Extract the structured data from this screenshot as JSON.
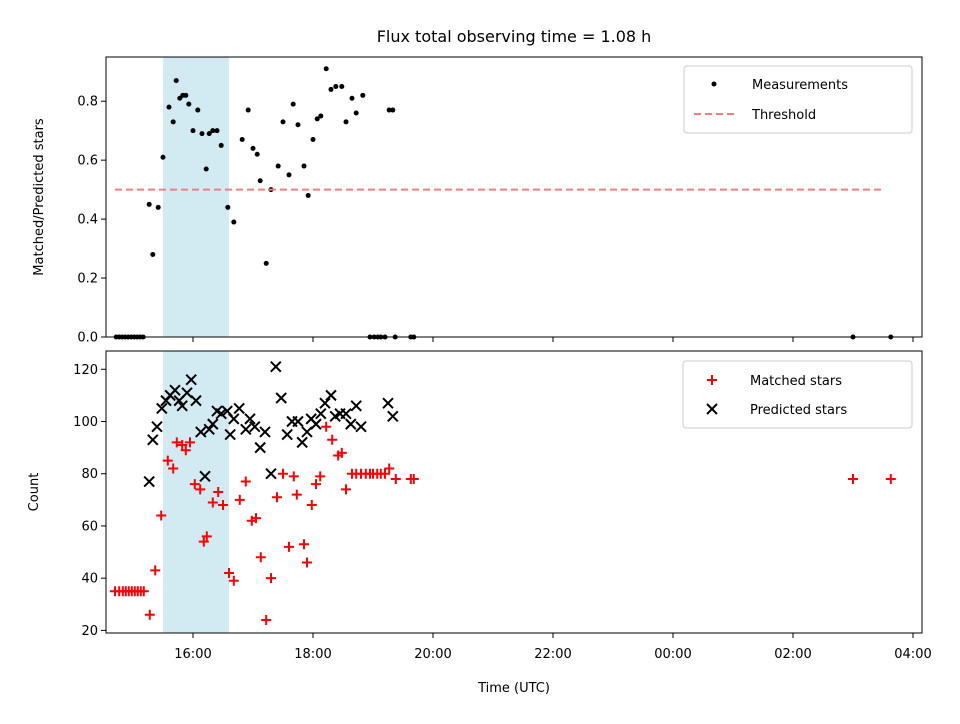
{
  "chart_data": [
    {
      "type": "scatter",
      "title": "Flux total observing time = 1.08 h",
      "xlabel": "",
      "ylabel": "Matched/Predicted stars",
      "xlim": [
        14.55,
        28.15
      ],
      "ylim": [
        0,
        0.95
      ],
      "yticks": [
        0.0,
        0.2,
        0.4,
        0.6,
        0.8
      ],
      "ytick_labels": [
        "0.0",
        "0.2",
        "0.4",
        "0.6",
        "0.8"
      ],
      "grid": false,
      "legend_position": "top-right",
      "shaded_span": {
        "x": [
          15.5,
          16.6
        ],
        "color": "#add8e6"
      },
      "series": [
        {
          "name": "Measurements",
          "marker": "dot",
          "color": "#000000",
          "points": [
            [
              14.72,
              0.0
            ],
            [
              14.77,
              0.0
            ],
            [
              14.82,
              0.0
            ],
            [
              14.87,
              0.0
            ],
            [
              14.92,
              0.0
            ],
            [
              14.97,
              0.0
            ],
            [
              15.02,
              0.0
            ],
            [
              15.07,
              0.0
            ],
            [
              15.12,
              0.0
            ],
            [
              15.17,
              0.0
            ],
            [
              15.27,
              0.45
            ],
            [
              15.33,
              0.28
            ],
            [
              15.42,
              0.44
            ],
            [
              15.5,
              0.61
            ],
            [
              15.6,
              0.78
            ],
            [
              15.67,
              0.73
            ],
            [
              15.72,
              0.87
            ],
            [
              15.78,
              0.81
            ],
            [
              15.83,
              0.82
            ],
            [
              15.88,
              0.82
            ],
            [
              15.93,
              0.79
            ],
            [
              16.0,
              0.7
            ],
            [
              16.08,
              0.77
            ],
            [
              16.15,
              0.69
            ],
            [
              16.22,
              0.57
            ],
            [
              16.27,
              0.69
            ],
            [
              16.33,
              0.7
            ],
            [
              16.4,
              0.7
            ],
            [
              16.47,
              0.65
            ],
            [
              16.58,
              0.44
            ],
            [
              16.68,
              0.39
            ],
            [
              16.82,
              0.67
            ],
            [
              16.92,
              0.77
            ],
            [
              17.0,
              0.64
            ],
            [
              17.07,
              0.62
            ],
            [
              17.12,
              0.53
            ],
            [
              17.22,
              0.25
            ],
            [
              17.3,
              0.5
            ],
            [
              17.42,
              0.58
            ],
            [
              17.5,
              0.73
            ],
            [
              17.6,
              0.55
            ],
            [
              17.67,
              0.79
            ],
            [
              17.75,
              0.72
            ],
            [
              17.85,
              0.58
            ],
            [
              17.92,
              0.48
            ],
            [
              18.0,
              0.67
            ],
            [
              18.07,
              0.74
            ],
            [
              18.13,
              0.75
            ],
            [
              18.22,
              0.91
            ],
            [
              18.3,
              0.84
            ],
            [
              18.38,
              0.85
            ],
            [
              18.48,
              0.85
            ],
            [
              18.55,
              0.73
            ],
            [
              18.65,
              0.81
            ],
            [
              18.72,
              0.76
            ],
            [
              18.83,
              0.82
            ],
            [
              18.95,
              0.0
            ],
            [
              19.02,
              0.0
            ],
            [
              19.08,
              0.0
            ],
            [
              19.13,
              0.0
            ],
            [
              19.2,
              0.0
            ],
            [
              19.27,
              0.77
            ],
            [
              19.33,
              0.77
            ],
            [
              19.37,
              0.0
            ],
            [
              19.63,
              0.0
            ],
            [
              19.68,
              0.0
            ],
            [
              27.0,
              0.0
            ],
            [
              27.63,
              0.0
            ]
          ]
        },
        {
          "name": "Threshold",
          "marker": "dashed-line",
          "color": "#f08080",
          "x": [
            14.7,
            27.5
          ],
          "y": [
            0.5,
            0.5
          ]
        }
      ]
    },
    {
      "type": "scatter",
      "title": "",
      "xlabel": "Time (UTC)",
      "ylabel": "Count",
      "xlim": [
        14.55,
        28.15
      ],
      "ylim": [
        19,
        127
      ],
      "yticks": [
        20,
        40,
        60,
        80,
        100,
        120
      ],
      "ytick_labels": [
        "20",
        "40",
        "60",
        "80",
        "100",
        "120"
      ],
      "xticks": [
        16,
        18,
        20,
        22,
        24,
        26,
        28
      ],
      "xtick_labels": [
        "16:00",
        "18:00",
        "20:00",
        "22:00",
        "00:00",
        "02:00",
        "04:00"
      ],
      "grid": false,
      "legend_position": "top-right",
      "shaded_span": {
        "x": [
          15.5,
          16.6
        ],
        "color": "#add8e6"
      },
      "series": [
        {
          "name": "Matched stars",
          "marker": "plus",
          "color": "#ff0000",
          "points": [
            [
              14.7,
              35
            ],
            [
              14.77,
              35
            ],
            [
              14.83,
              35
            ],
            [
              14.88,
              35
            ],
            [
              14.93,
              35
            ],
            [
              14.98,
              35
            ],
            [
              15.03,
              35
            ],
            [
              15.08,
              35
            ],
            [
              15.13,
              35
            ],
            [
              15.18,
              35
            ],
            [
              15.28,
              26
            ],
            [
              15.37,
              43
            ],
            [
              15.47,
              64
            ],
            [
              15.58,
              85
            ],
            [
              15.67,
              82
            ],
            [
              15.73,
              92
            ],
            [
              15.82,
              91
            ],
            [
              15.88,
              89
            ],
            [
              15.95,
              92
            ],
            [
              16.03,
              76
            ],
            [
              16.12,
              74
            ],
            [
              16.18,
              54
            ],
            [
              16.23,
              56
            ],
            [
              16.33,
              69
            ],
            [
              16.42,
              73
            ],
            [
              16.5,
              68
            ],
            [
              16.6,
              42
            ],
            [
              16.68,
              39
            ],
            [
              16.78,
              70
            ],
            [
              16.88,
              77
            ],
            [
              16.98,
              62
            ],
            [
              17.05,
              63
            ],
            [
              17.13,
              48
            ],
            [
              17.22,
              24
            ],
            [
              17.3,
              40
            ],
            [
              17.4,
              71
            ],
            [
              17.5,
              80
            ],
            [
              17.6,
              52
            ],
            [
              17.68,
              79
            ],
            [
              17.73,
              72
            ],
            [
              17.85,
              53
            ],
            [
              17.9,
              46
            ],
            [
              17.98,
              68
            ],
            [
              18.05,
              76
            ],
            [
              18.12,
              79
            ],
            [
              18.22,
              98
            ],
            [
              18.32,
              93
            ],
            [
              18.42,
              87
            ],
            [
              18.48,
              88
            ],
            [
              18.55,
              74
            ],
            [
              18.65,
              80
            ],
            [
              18.72,
              80
            ],
            [
              18.8,
              80
            ],
            [
              18.88,
              80
            ],
            [
              18.95,
              80
            ],
            [
              19.0,
              80
            ],
            [
              19.07,
              80
            ],
            [
              19.13,
              80
            ],
            [
              19.2,
              80
            ],
            [
              19.27,
              82
            ],
            [
              19.38,
              78
            ],
            [
              19.63,
              78
            ],
            [
              19.68,
              78
            ],
            [
              27.0,
              78
            ],
            [
              27.63,
              78
            ]
          ]
        },
        {
          "name": "Predicted stars",
          "marker": "x",
          "color": "#000000",
          "points": [
            [
              15.27,
              77
            ],
            [
              15.33,
              93
            ],
            [
              15.4,
              98
            ],
            [
              15.48,
              105
            ],
            [
              15.55,
              108
            ],
            [
              15.62,
              110
            ],
            [
              15.7,
              112
            ],
            [
              15.77,
              108
            ],
            [
              15.82,
              106
            ],
            [
              15.9,
              111
            ],
            [
              15.97,
              116
            ],
            [
              16.05,
              108
            ],
            [
              16.13,
              96
            ],
            [
              16.2,
              79
            ],
            [
              16.27,
              97
            ],
            [
              16.33,
              99
            ],
            [
              16.4,
              104
            ],
            [
              16.47,
              103
            ],
            [
              16.57,
              104
            ],
            [
              16.62,
              95
            ],
            [
              16.68,
              101
            ],
            [
              16.77,
              105
            ],
            [
              16.88,
              97
            ],
            [
              16.95,
              101
            ],
            [
              17.03,
              98
            ],
            [
              17.12,
              90
            ],
            [
              17.2,
              96
            ],
            [
              17.3,
              80
            ],
            [
              17.38,
              121
            ],
            [
              17.47,
              109
            ],
            [
              17.57,
              95
            ],
            [
              17.65,
              100
            ],
            [
              17.75,
              100
            ],
            [
              17.82,
              92
            ],
            [
              17.9,
              96
            ],
            [
              17.97,
              101
            ],
            [
              18.05,
              99
            ],
            [
              18.13,
              103
            ],
            [
              18.2,
              107
            ],
            [
              18.3,
              110
            ],
            [
              18.37,
              102
            ],
            [
              18.45,
              103
            ],
            [
              18.55,
              103
            ],
            [
              18.63,
              99
            ],
            [
              18.72,
              106
            ],
            [
              18.8,
              98
            ],
            [
              19.25,
              107
            ],
            [
              19.33,
              102
            ]
          ]
        }
      ]
    }
  ]
}
